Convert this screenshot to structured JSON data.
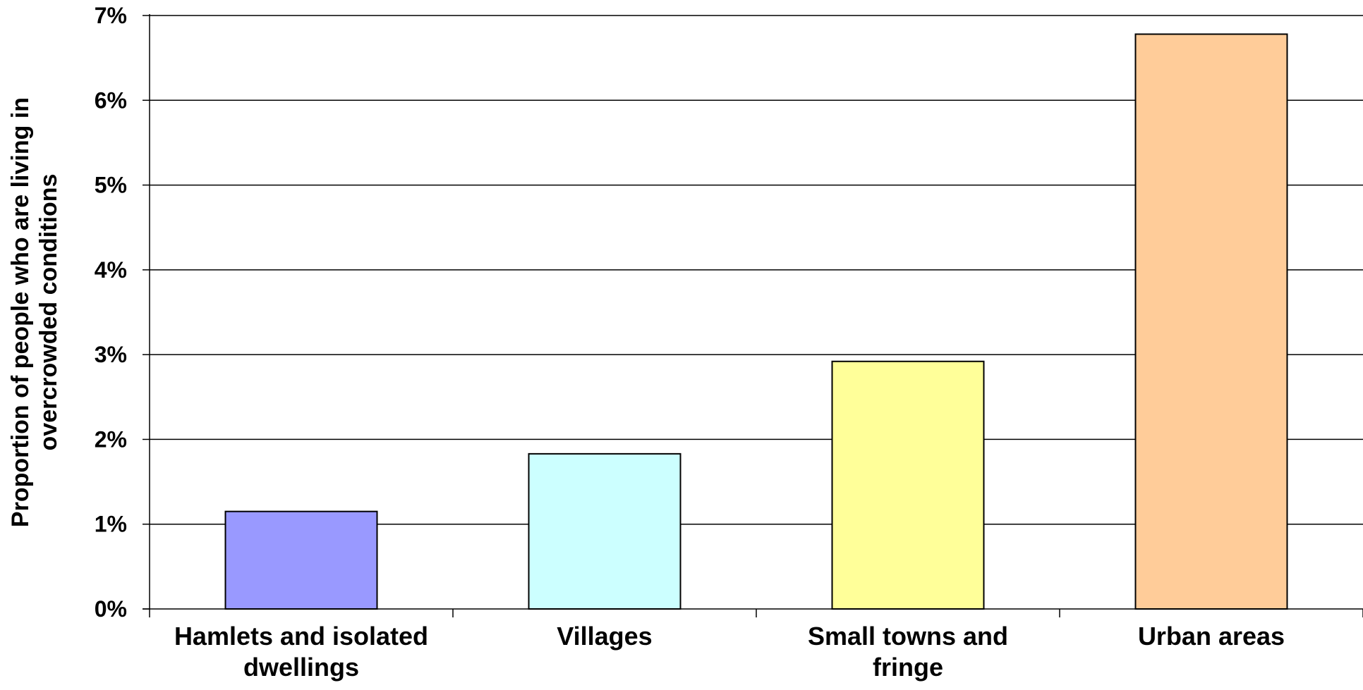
{
  "chart_data": {
    "type": "bar",
    "title": "",
    "xlabel": "",
    "ylabel": "Proportion of people who are living in overcrowded conditions",
    "ylabel_lines": [
      "Proportion of people who are living in",
      "overcrowded conditions"
    ],
    "categories": [
      [
        "Hamlets and isolated",
        "dwellings"
      ],
      [
        "Villages"
      ],
      [
        "Small towns and",
        "fringe"
      ],
      [
        "Urban areas"
      ]
    ],
    "values": [
      1.15,
      1.83,
      2.92,
      6.78
    ],
    "colors": [
      "#9999FF",
      "#CCFFFF",
      "#FFFF99",
      "#FFCC99"
    ],
    "ylim": [
      0,
      7
    ],
    "yticks": [
      0,
      1,
      2,
      3,
      4,
      5,
      6,
      7
    ],
    "ytick_labels": [
      "0%",
      "1%",
      "2%",
      "3%",
      "4%",
      "5%",
      "6%",
      "7%"
    ],
    "grid": true,
    "legend": "none"
  }
}
